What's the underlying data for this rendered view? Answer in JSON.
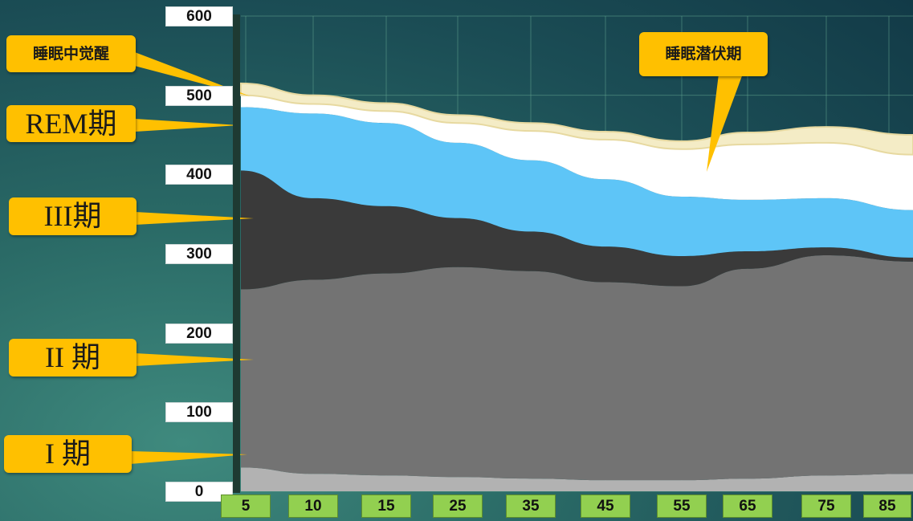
{
  "chart_data": {
    "type": "area",
    "stacked": true,
    "x": [
      "5",
      "10",
      "15",
      "25",
      "35",
      "45",
      "55",
      "65",
      "75",
      "85"
    ],
    "ylim": [
      0,
      600
    ],
    "yticks": [
      "600",
      "500",
      "400",
      "300",
      "200",
      "100",
      "0"
    ],
    "grid": true,
    "series": [
      {
        "name": "I 期",
        "color": "#b2b2b2",
        "values": [
          30,
          22,
          20,
          18,
          16,
          14,
          14,
          16,
          20,
          22
        ]
      },
      {
        "name": "II 期",
        "color": "#737373",
        "values": [
          225,
          245,
          255,
          265,
          262,
          250,
          245,
          265,
          278,
          268
        ]
      },
      {
        "name": "III期",
        "color": "#3a3a3a",
        "values": [
          150,
          103,
          85,
          62,
          50,
          45,
          38,
          22,
          10,
          5
        ]
      },
      {
        "name": "REM期",
        "color": "#5ec5f7",
        "values": [
          80,
          107,
          105,
          95,
          90,
          85,
          75,
          65,
          62,
          60
        ]
      },
      {
        "name": "睡眠中觉醒",
        "color": "#ffffff",
        "values": [
          15,
          12,
          15,
          25,
          37,
          50,
          60,
          70,
          70,
          70
        ]
      },
      {
        "name": "睡眠潜伏期",
        "color": "#f4ecc6",
        "values": [
          15,
          11,
          10,
          10,
          10,
          10,
          10,
          15,
          20,
          25
        ]
      }
    ]
  },
  "labels": {
    "wake": "睡眠中觉醒",
    "latency": "睡眠潜伏期",
    "rem": "REM期",
    "s3": "III期",
    "s2": "II 期",
    "s1": "I 期"
  }
}
